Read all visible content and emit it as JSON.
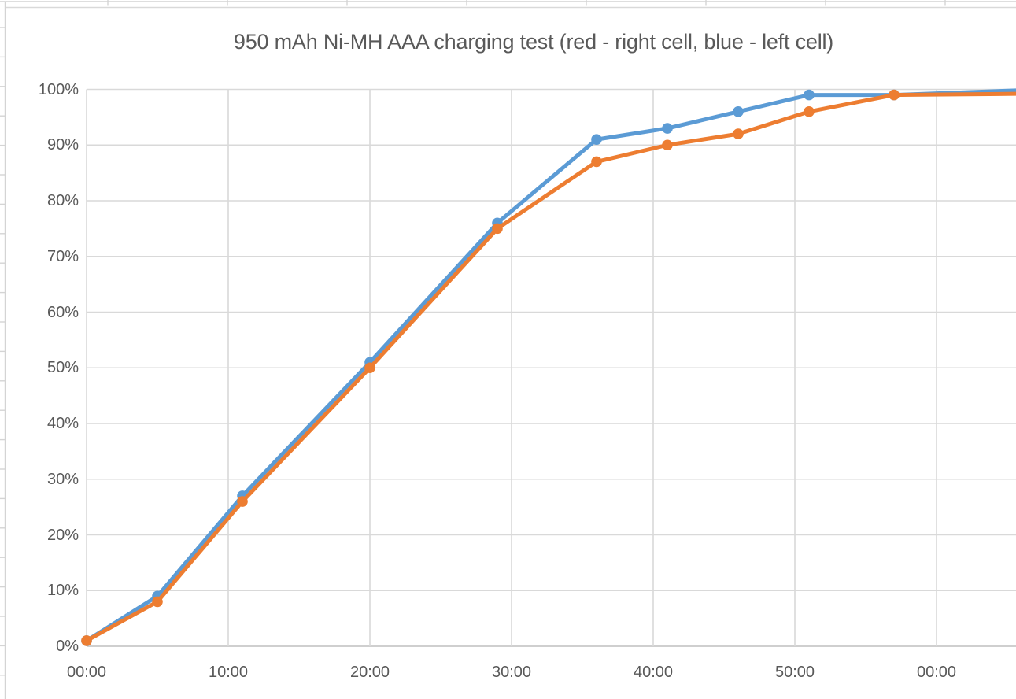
{
  "window": {
    "app_context": "spreadsheet-embedded-chart",
    "background_color": "#FFFFFF"
  },
  "colors": {
    "series_blue": "#5B9BD5",
    "series_orange": "#ED7D31",
    "gridline": "#D9D9D9",
    "axis_line": "#BFBFBF",
    "axis_text": "#595959",
    "title_text": "#595959",
    "spreadsheet_grid": "#D4D4D4",
    "chart_border": "#D9D9D9"
  },
  "chart_data": {
    "type": "line",
    "title": "950 mAh Ni-MH AAA charging test (red - right cell, blue - left cell)",
    "xlabel": "",
    "ylabel": "",
    "grid": true,
    "legend_position": "none",
    "ylim": [
      0,
      100
    ],
    "xlim_minutes": [
      0,
      65.6
    ],
    "y_ticks": [
      {
        "label": "0%",
        "value": 0
      },
      {
        "label": "10%",
        "value": 10
      },
      {
        "label": "20%",
        "value": 20
      },
      {
        "label": "30%",
        "value": 30
      },
      {
        "label": "40%",
        "value": 40
      },
      {
        "label": "50%",
        "value": 50
      },
      {
        "label": "60%",
        "value": 60
      },
      {
        "label": "70%",
        "value": 70
      },
      {
        "label": "80%",
        "value": 80
      },
      {
        "label": "90%",
        "value": 90
      },
      {
        "label": "100%",
        "value": 100
      }
    ],
    "x_ticks": [
      {
        "label": "00:00",
        "minutes": 0
      },
      {
        "label": "10:00",
        "minutes": 10
      },
      {
        "label": "20:00",
        "minutes": 20
      },
      {
        "label": "30:00",
        "minutes": 30
      },
      {
        "label": "40:00",
        "minutes": 40
      },
      {
        "label": "50:00",
        "minutes": 50
      },
      {
        "label": "00:00",
        "minutes": 60
      }
    ],
    "series": [
      {
        "name": "left cell (blue)",
        "color": "#5B9BD5",
        "marker": "circle",
        "t_minutes": [
          0,
          5,
          11,
          20,
          29,
          36,
          41,
          46,
          51,
          57
        ],
        "charge_pct": [
          1,
          9,
          27,
          51,
          76,
          91,
          93,
          96,
          99,
          99
        ],
        "line_extends_to_right_edge_pct": 99.8
      },
      {
        "name": "right cell (red/orange)",
        "color": "#ED7D31",
        "marker": "circle",
        "t_minutes": [
          0,
          5,
          11,
          20,
          29,
          36,
          41,
          46,
          51,
          57
        ],
        "charge_pct": [
          1,
          8,
          26,
          50,
          75,
          87,
          90,
          92,
          96,
          99
        ],
        "line_extends_to_right_edge_pct": 99.2
      }
    ]
  }
}
